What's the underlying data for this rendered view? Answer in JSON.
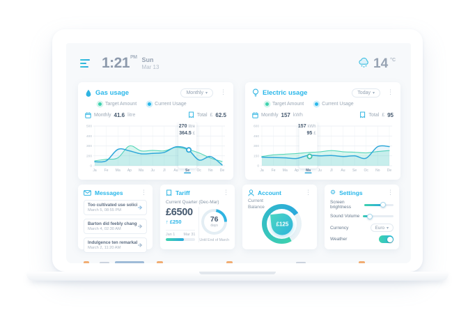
{
  "header": {
    "time": "1:21",
    "time_period": "PM",
    "day": "Sun",
    "date": "Mar 13",
    "temperature": "14",
    "temperature_unit": "°C"
  },
  "gas": {
    "title": "Gas usage",
    "range": "Monthly",
    "legend": {
      "target": "Target Amount",
      "current": "Current Usage"
    },
    "period_label": "Monthly",
    "period_value": "41.6",
    "period_unit": "litre",
    "total_label": "Total",
    "total_currency": "£",
    "total_value": "62.5"
  },
  "electric": {
    "title": "Electric usage",
    "range": "Today",
    "legend": {
      "target": "Target Amount",
      "current": "Current Usage"
    },
    "period_label": "Monthly",
    "period_value": "157",
    "period_unit": "kWh",
    "total_label": "Total",
    "total_currency": "£",
    "total_value": "95"
  },
  "messages": {
    "title": "Messages",
    "items": [
      {
        "text": "Too cultivated use solicitude",
        "date": "March 5, 08:55 PM"
      },
      {
        "text": "Barton did feebly change man",
        "date": "March 4, 02:30 AM"
      },
      {
        "text": "Indulgence ten remarkably",
        "date": "March 2, 11:20 AM"
      }
    ]
  },
  "tariff": {
    "title": "Tariff",
    "subtitle": "Current Quarter (Dec-Mar)",
    "amount": "£6500",
    "delta_arrow": "↑",
    "delta": "£250",
    "start_label": "Jan 1",
    "end_label": "Mar 31",
    "progress_pct": 62,
    "days_value": "76",
    "days_label": "days",
    "days_ring_pct": 22,
    "caption": "Until End of March"
  },
  "account": {
    "title": "Account",
    "balance_label": "Current Balance",
    "balance": "£125",
    "gauge_pct": 74
  },
  "settings": {
    "title": "Settings",
    "brightness_label": "Screen brightness",
    "brightness_pct": 63,
    "volume_label": "Sound Volume",
    "volume_pct": 22,
    "currency_label": "Currency",
    "currency_value": "Euro",
    "weather_label": "Weather",
    "weather_on": true
  },
  "chart_data": [
    {
      "type": "line",
      "title": "Gas usage",
      "categories": [
        "Ja",
        "Fe",
        "Ma",
        "Ap",
        "Ma",
        "Ju",
        "Jl",
        "Au",
        "Se",
        "Oc",
        "No",
        "De"
      ],
      "yticks": [
        0,
        200,
        300,
        400,
        500
      ],
      "series": [
        {
          "name": "Target Amount",
          "values": [
            100,
            130,
            160,
            300,
            250,
            255,
            250,
            285,
            265,
            230,
            155,
            85
          ]
        },
        {
          "name": "Current Usage",
          "values": [
            80,
            100,
            265,
            250,
            220,
            225,
            235,
            290,
            270,
            115,
            185,
            15
          ]
        }
      ],
      "active_index": 8,
      "active_category": "Se",
      "tooltip": {
        "value": "270",
        "unit": "litre",
        "cost": "364.5",
        "currency": "£"
      },
      "ylabel": "litre",
      "grid": true,
      "legend_position": "top"
    },
    {
      "type": "line",
      "title": "Electric usage",
      "categories": [
        "Ja",
        "Fe",
        "Ma",
        "Ap",
        "Ma",
        "Ju",
        "Jl",
        "Au",
        "Se",
        "Oc",
        "No",
        "De"
      ],
      "yticks": [
        0,
        150,
        300,
        450,
        600
      ],
      "series": [
        {
          "name": "Target Amount",
          "values": [
            140,
            165,
            175,
            185,
            200,
            210,
            230,
            212,
            205,
            195,
            215,
            230
          ]
        },
        {
          "name": "Current Usage",
          "values": [
            130,
            125,
            120,
            110,
            157,
            150,
            155,
            140,
            150,
            115,
            290,
            290
          ]
        }
      ],
      "active_index": 4,
      "active_category": "Ma",
      "tooltip": {
        "value": "157",
        "unit": "kWh",
        "cost": "95",
        "currency": "£"
      },
      "ylabel": "kWh",
      "grid": true,
      "legend_position": "top"
    }
  ],
  "colors": {
    "accent_cyan": "#29b7ea",
    "teal": "#3ed2ae",
    "blue": "#2ea7d9",
    "dark_text": "#44586e",
    "gray_text": "#9aa7b6",
    "screen_bg": "#f7f9fb",
    "grid_line": "#e9eef3",
    "peek_orange": "#f0a05a"
  }
}
